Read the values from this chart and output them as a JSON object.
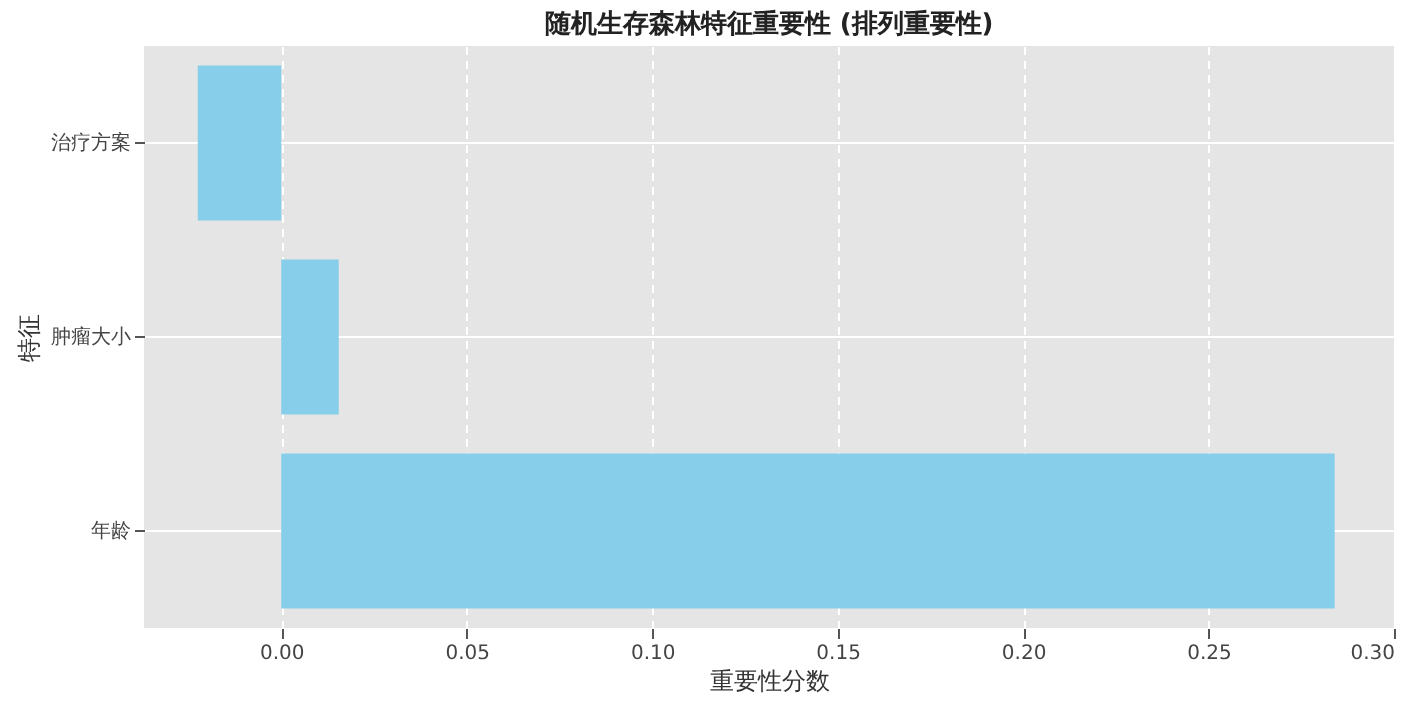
{
  "chart_data": {
    "type": "bar",
    "orientation": "horizontal",
    "title": "随机生存森林特征重要性 (排列重要性)",
    "xlabel": "重要性分数",
    "ylabel": "特征",
    "categories": [
      "治疗方案",
      "肿瘤大小",
      "年龄"
    ],
    "values": [
      -0.0225,
      0.0155,
      0.284
    ],
    "color": "#87ceeb",
    "xlim": [
      -0.037,
      0.3
    ],
    "xticks": [
      {
        "value": 0,
        "label": "0.00"
      },
      0.05,
      {
        "value": 0.1,
        "label": "0.10"
      },
      0.15,
      {
        "value": 0.2,
        "label": "0.20"
      },
      0.25,
      {
        "value": 0.3,
        "label": "0.30"
      }
    ],
    "grid": true
  }
}
